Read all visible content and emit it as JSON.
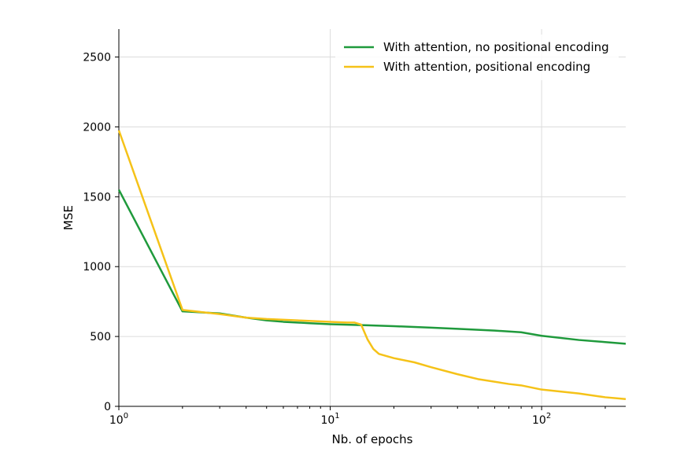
{
  "chart_data": {
    "type": "line",
    "title": "",
    "xlabel": "Nb. of epochs",
    "ylabel": "MSE",
    "xscale": "log",
    "xlim": [
      1,
      250
    ],
    "ylim": [
      0,
      2700
    ],
    "grid": true,
    "legend_placement": "top-right",
    "x_ticks": [
      {
        "value": 1,
        "base": "10",
        "exp": "0"
      },
      {
        "value": 10,
        "base": "10",
        "exp": "1"
      },
      {
        "value": 100,
        "base": "10",
        "exp": "2"
      }
    ],
    "y_ticks": [
      0,
      500,
      1000,
      1500,
      2000,
      2500
    ],
    "series": [
      {
        "name": "With attention, no positional encoding",
        "color": "#1f9a3c",
        "points": [
          [
            1,
            1550
          ],
          [
            2,
            680
          ],
          [
            3,
            665
          ],
          [
            4,
            635
          ],
          [
            5,
            615
          ],
          [
            6,
            605
          ],
          [
            8,
            595
          ],
          [
            10,
            588
          ],
          [
            12,
            584
          ],
          [
            15,
            580
          ],
          [
            20,
            574
          ],
          [
            30,
            563
          ],
          [
            40,
            555
          ],
          [
            60,
            542
          ],
          [
            80,
            530
          ],
          [
            100,
            505
          ],
          [
            150,
            475
          ],
          [
            200,
            460
          ],
          [
            250,
            448
          ]
        ]
      },
      {
        "name": "With attention, positional encoding",
        "color": "#f5c218",
        "points": [
          [
            1,
            1975
          ],
          [
            2,
            690
          ],
          [
            3,
            660
          ],
          [
            4,
            635
          ],
          [
            5,
            625
          ],
          [
            7,
            615
          ],
          [
            10,
            605
          ],
          [
            12,
            600
          ],
          [
            13,
            600
          ],
          [
            14,
            585
          ],
          [
            15,
            480
          ],
          [
            16,
            410
          ],
          [
            17,
            375
          ],
          [
            20,
            345
          ],
          [
            25,
            315
          ],
          [
            30,
            280
          ],
          [
            40,
            230
          ],
          [
            50,
            195
          ],
          [
            70,
            160
          ],
          [
            80,
            150
          ],
          [
            100,
            120
          ],
          [
            150,
            92
          ],
          [
            200,
            65
          ],
          [
            250,
            52
          ]
        ]
      }
    ]
  }
}
